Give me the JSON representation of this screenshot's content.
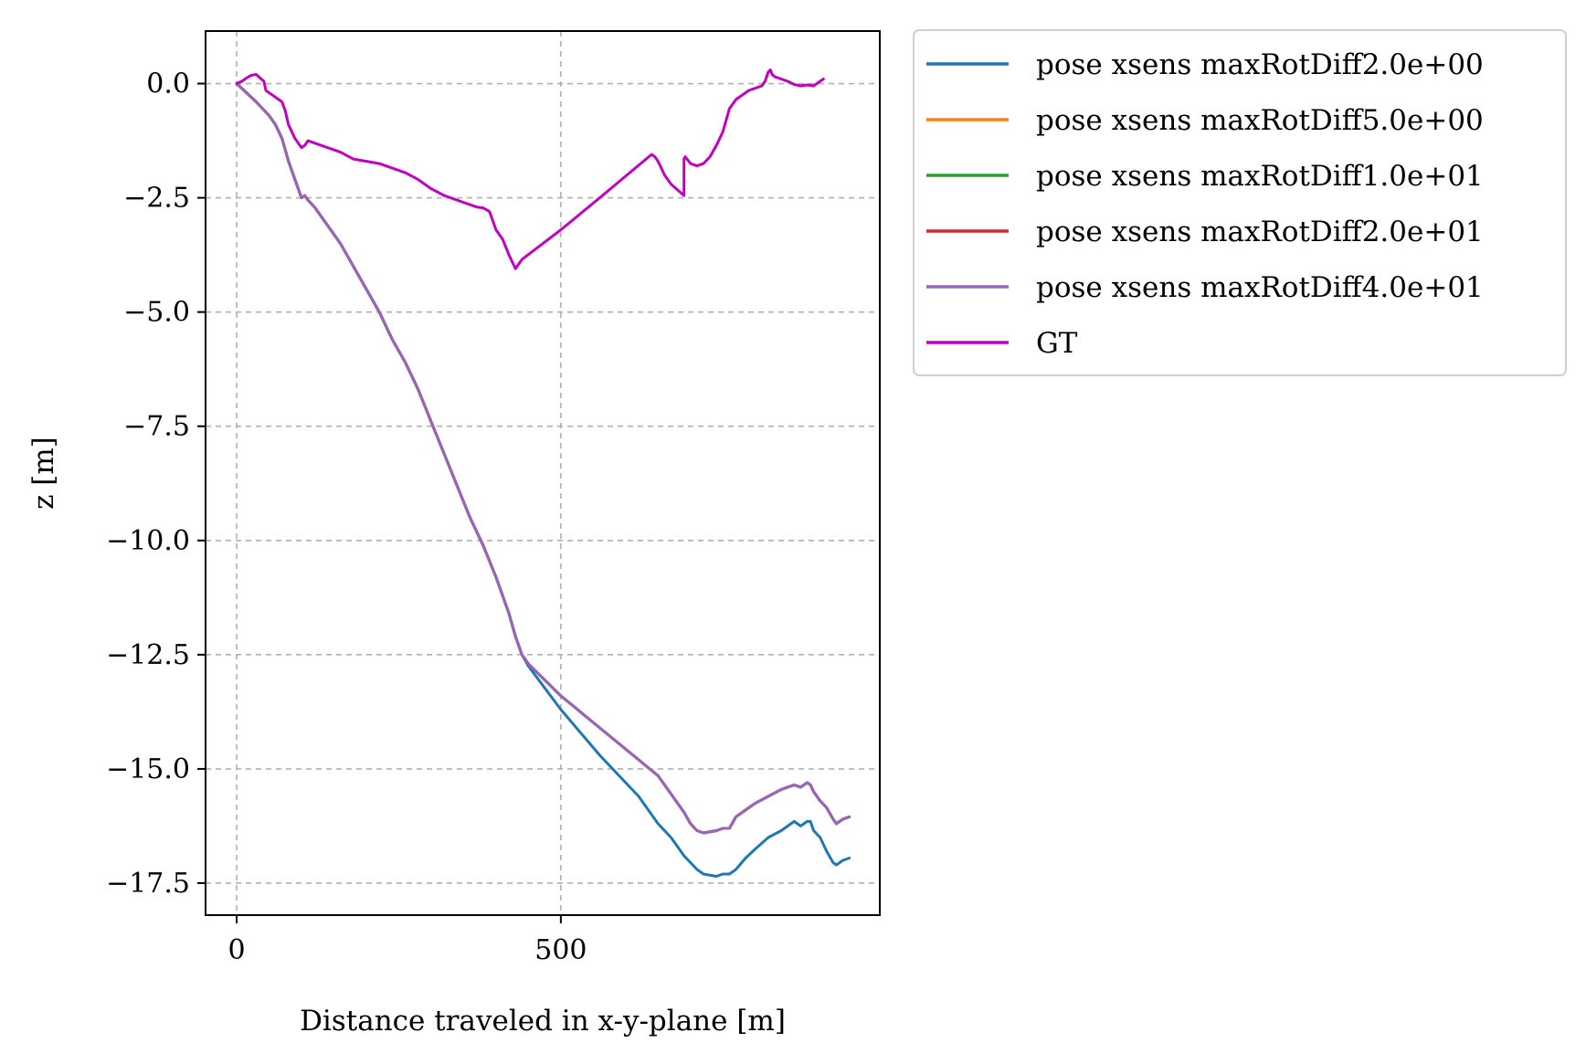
{
  "chart_data": {
    "type": "line",
    "title": "",
    "xlabel": "Distance traveled in x-y-plane [m]",
    "ylabel": "z [m]",
    "xlim": [
      -48,
      992
    ],
    "ylim": [
      -18.2,
      1.15
    ],
    "xticks": [
      0,
      500
    ],
    "xtick_labels": [
      "0",
      "500"
    ],
    "yticks": [
      0.0,
      -2.5,
      -5.0,
      -7.5,
      -10.0,
      -12.5,
      -15.0,
      -17.5
    ],
    "ytick_labels": [
      "0.0",
      "−2.5",
      "−5.0",
      "−7.5",
      "−10.0",
      "−12.5",
      "−15.0",
      "−17.5"
    ],
    "grid": true,
    "legend_position": "outside-top-right",
    "series": [
      {
        "name": "pose xsens maxRotDiff2.0e+00",
        "color": "#1f77b4",
        "x": [
          0,
          15,
          30,
          50,
          60,
          70,
          80,
          90,
          100,
          105,
          110,
          120,
          140,
          160,
          180,
          200,
          220,
          240,
          260,
          280,
          300,
          320,
          340,
          360,
          380,
          400,
          410,
          420,
          430,
          440,
          450,
          500,
          560,
          620,
          650,
          670,
          690,
          700,
          710,
          720,
          740,
          750,
          760,
          770,
          785,
          800,
          820,
          840,
          860,
          870,
          880,
          885,
          890,
          900,
          910,
          920,
          925,
          935,
          945
        ],
        "y": [
          0.0,
          -0.2,
          -0.4,
          -0.7,
          -0.9,
          -1.2,
          -1.7,
          -2.1,
          -2.5,
          -2.45,
          -2.55,
          -2.7,
          -3.1,
          -3.5,
          -4.0,
          -4.5,
          -5.0,
          -5.6,
          -6.1,
          -6.7,
          -7.4,
          -8.1,
          -8.8,
          -9.5,
          -10.1,
          -10.8,
          -11.2,
          -11.6,
          -12.1,
          -12.5,
          -12.75,
          -13.7,
          -14.7,
          -15.6,
          -16.2,
          -16.5,
          -16.9,
          -17.05,
          -17.2,
          -17.3,
          -17.35,
          -17.3,
          -17.3,
          -17.2,
          -16.95,
          -16.75,
          -16.5,
          -16.35,
          -16.15,
          -16.25,
          -16.15,
          -16.15,
          -16.35,
          -16.5,
          -16.8,
          -17.05,
          -17.1,
          -17.0,
          -16.95
        ]
      },
      {
        "name": "pose xsens maxRotDiff5.0e+00",
        "color": "#ff7f0e",
        "x": [
          0,
          15,
          30,
          50,
          60,
          70,
          80,
          90,
          100,
          105,
          110,
          120,
          140,
          160,
          180,
          200,
          220,
          240,
          260,
          280,
          300,
          320,
          340,
          360,
          380,
          400,
          410,
          420,
          430,
          440,
          450,
          500,
          560,
          620,
          650,
          670,
          690,
          700,
          710,
          720,
          740,
          750,
          760,
          770,
          785,
          800,
          820,
          840,
          860,
          870,
          880,
          885,
          890,
          900,
          910,
          920,
          925,
          935,
          945
        ],
        "y": [
          0.0,
          -0.2,
          -0.4,
          -0.7,
          -0.9,
          -1.2,
          -1.7,
          -2.1,
          -2.5,
          -2.45,
          -2.55,
          -2.7,
          -3.1,
          -3.5,
          -4.0,
          -4.5,
          -5.0,
          -5.6,
          -6.1,
          -6.7,
          -7.4,
          -8.1,
          -8.8,
          -9.5,
          -10.1,
          -10.8,
          -11.2,
          -11.6,
          -12.1,
          -12.5,
          -12.7,
          -13.4,
          -14.1,
          -14.8,
          -15.15,
          -15.55,
          -15.95,
          -16.2,
          -16.35,
          -16.4,
          -16.35,
          -16.3,
          -16.3,
          -16.05,
          -15.9,
          -15.75,
          -15.6,
          -15.45,
          -15.35,
          -15.4,
          -15.3,
          -15.35,
          -15.5,
          -15.7,
          -15.85,
          -16.1,
          -16.2,
          -16.1,
          -16.05
        ]
      },
      {
        "name": "pose xsens maxRotDiff1.0e+01",
        "color": "#2ca02c",
        "x": [
          0,
          15,
          30,
          50,
          60,
          70,
          80,
          90,
          100,
          105,
          110,
          120,
          140,
          160,
          180,
          200,
          220,
          240,
          260,
          280,
          300,
          320,
          340,
          360,
          380,
          400,
          410,
          420,
          430,
          440,
          450,
          500,
          560,
          620,
          650,
          670,
          690,
          700,
          710,
          720,
          740,
          750,
          760,
          770,
          785,
          800,
          820,
          840,
          860,
          870,
          880,
          885,
          890,
          900,
          910,
          920,
          925,
          935,
          945
        ],
        "y": [
          0.0,
          -0.2,
          -0.4,
          -0.7,
          -0.9,
          -1.2,
          -1.7,
          -2.1,
          -2.5,
          -2.45,
          -2.55,
          -2.7,
          -3.1,
          -3.5,
          -4.0,
          -4.5,
          -5.0,
          -5.6,
          -6.1,
          -6.7,
          -7.4,
          -8.1,
          -8.8,
          -9.5,
          -10.1,
          -10.8,
          -11.2,
          -11.6,
          -12.1,
          -12.5,
          -12.7,
          -13.4,
          -14.1,
          -14.8,
          -15.15,
          -15.55,
          -15.95,
          -16.2,
          -16.35,
          -16.4,
          -16.35,
          -16.3,
          -16.3,
          -16.05,
          -15.9,
          -15.75,
          -15.6,
          -15.45,
          -15.35,
          -15.4,
          -15.3,
          -15.35,
          -15.5,
          -15.7,
          -15.85,
          -16.1,
          -16.2,
          -16.1,
          -16.05
        ]
      },
      {
        "name": "pose xsens maxRotDiff2.0e+01",
        "color": "#d62728",
        "x": [
          0,
          15,
          30,
          50,
          60,
          70,
          80,
          90,
          100,
          105,
          110,
          120,
          140,
          160,
          180,
          200,
          220,
          240,
          260,
          280,
          300,
          320,
          340,
          360,
          380,
          400,
          410,
          420,
          430,
          440,
          450,
          500,
          560,
          620,
          650,
          670,
          690,
          700,
          710,
          720,
          740,
          750,
          760,
          770,
          785,
          800,
          820,
          840,
          860,
          870,
          880,
          885,
          890,
          900,
          910,
          920,
          925,
          935,
          945
        ],
        "y": [
          0.0,
          -0.2,
          -0.4,
          -0.7,
          -0.9,
          -1.2,
          -1.7,
          -2.1,
          -2.5,
          -2.45,
          -2.55,
          -2.7,
          -3.1,
          -3.5,
          -4.0,
          -4.5,
          -5.0,
          -5.6,
          -6.1,
          -6.7,
          -7.4,
          -8.1,
          -8.8,
          -9.5,
          -10.1,
          -10.8,
          -11.2,
          -11.6,
          -12.1,
          -12.5,
          -12.7,
          -13.4,
          -14.1,
          -14.8,
          -15.15,
          -15.55,
          -15.95,
          -16.2,
          -16.35,
          -16.4,
          -16.35,
          -16.3,
          -16.3,
          -16.05,
          -15.9,
          -15.75,
          -15.6,
          -15.45,
          -15.35,
          -15.4,
          -15.3,
          -15.35,
          -15.5,
          -15.7,
          -15.85,
          -16.1,
          -16.2,
          -16.1,
          -16.05
        ]
      },
      {
        "name": "pose xsens maxRotDiff4.0e+01",
        "color": "#9467bd",
        "x": [
          0,
          15,
          30,
          50,
          60,
          70,
          80,
          90,
          100,
          105,
          110,
          120,
          140,
          160,
          180,
          200,
          220,
          240,
          260,
          280,
          300,
          320,
          340,
          360,
          380,
          400,
          410,
          420,
          430,
          440,
          450,
          500,
          560,
          620,
          650,
          670,
          690,
          700,
          710,
          720,
          740,
          750,
          760,
          770,
          785,
          800,
          820,
          840,
          860,
          870,
          880,
          885,
          890,
          900,
          910,
          920,
          925,
          935,
          945
        ],
        "y": [
          0.0,
          -0.2,
          -0.4,
          -0.7,
          -0.9,
          -1.2,
          -1.7,
          -2.1,
          -2.5,
          -2.45,
          -2.55,
          -2.7,
          -3.1,
          -3.5,
          -4.0,
          -4.5,
          -5.0,
          -5.6,
          -6.1,
          -6.7,
          -7.4,
          -8.1,
          -8.8,
          -9.5,
          -10.1,
          -10.8,
          -11.2,
          -11.6,
          -12.1,
          -12.5,
          -12.7,
          -13.4,
          -14.1,
          -14.8,
          -15.15,
          -15.55,
          -15.95,
          -16.2,
          -16.35,
          -16.4,
          -16.35,
          -16.3,
          -16.3,
          -16.05,
          -15.9,
          -15.75,
          -15.6,
          -15.45,
          -15.35,
          -15.4,
          -15.3,
          -15.35,
          -15.5,
          -15.7,
          -15.85,
          -16.1,
          -16.2,
          -16.1,
          -16.05
        ]
      },
      {
        "name": "GT",
        "color": "#bf00bf",
        "x": [
          0,
          8,
          15,
          22,
          30,
          38,
          42,
          45,
          50,
          60,
          70,
          75,
          80,
          90,
          100,
          105,
          110,
          120,
          140,
          160,
          180,
          200,
          220,
          240,
          260,
          280,
          300,
          320,
          340,
          360,
          370,
          380,
          390,
          395,
          400,
          410,
          420,
          430,
          440,
          500,
          560,
          640,
          645,
          650,
          655,
          660,
          670,
          690,
          690,
          692,
          700,
          710,
          720,
          730,
          740,
          750,
          760,
          770,
          780,
          790,
          800,
          810,
          815,
          820,
          823,
          826,
          830,
          840,
          850,
          860,
          870,
          880,
          890,
          900,
          905
        ],
        "y": [
          0.0,
          0.05,
          0.12,
          0.18,
          0.2,
          0.1,
          0.05,
          -0.15,
          -0.2,
          -0.3,
          -0.4,
          -0.6,
          -0.9,
          -1.2,
          -1.4,
          -1.35,
          -1.25,
          -1.3,
          -1.4,
          -1.5,
          -1.65,
          -1.7,
          -1.75,
          -1.85,
          -1.95,
          -2.1,
          -2.3,
          -2.45,
          -2.55,
          -2.65,
          -2.7,
          -2.72,
          -2.8,
          -3.0,
          -3.2,
          -3.4,
          -3.75,
          -4.05,
          -3.85,
          -3.2,
          -2.5,
          -1.55,
          -1.6,
          -1.7,
          -1.85,
          -2.0,
          -2.2,
          -2.45,
          -1.65,
          -1.6,
          -1.75,
          -1.8,
          -1.75,
          -1.6,
          -1.35,
          -1.05,
          -0.55,
          -0.35,
          -0.25,
          -0.15,
          -0.1,
          -0.05,
          0.05,
          0.25,
          0.3,
          0.2,
          0.15,
          0.1,
          0.05,
          -0.02,
          -0.05,
          -0.03,
          -0.05,
          0.05,
          0.1
        ]
      }
    ]
  }
}
